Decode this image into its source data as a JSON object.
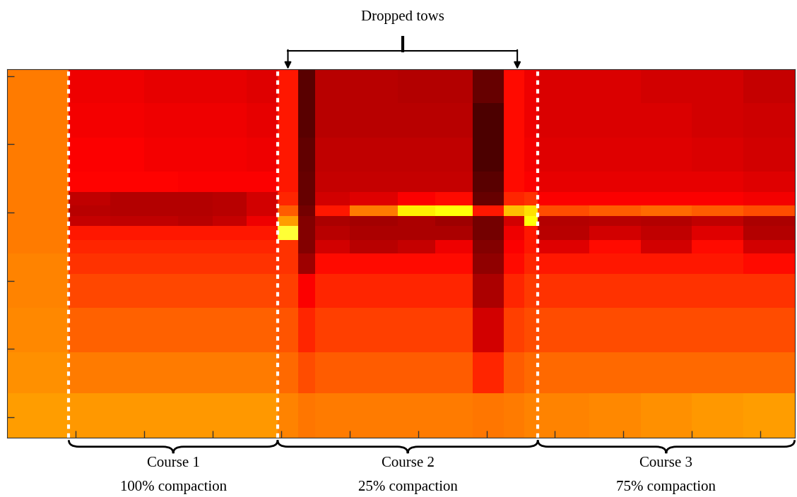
{
  "chart_data": {
    "type": "heatmap",
    "x_edges": [
      0,
      18,
      30,
      40,
      50,
      60,
      70,
      79,
      85,
      90,
      100,
      114,
      125,
      136,
      145,
      151,
      155,
      170,
      185,
      200,
      215,
      230
    ],
    "y_edges": [
      0,
      10,
      20,
      30,
      36,
      40,
      43,
      46,
      50,
      54,
      60,
      70,
      83,
      95,
      108
    ],
    "cells": [
      [
        55,
        34,
        34,
        33,
        33,
        33,
        32,
        40,
        12,
        26,
        26,
        25,
        25,
        14,
        38,
        34,
        31,
        31,
        30,
        30,
        28
      ],
      [
        55,
        35,
        35,
        34,
        34,
        34,
        33,
        40,
        12,
        26,
        26,
        26,
        26,
        10,
        38,
        34,
        31,
        31,
        31,
        30,
        29
      ],
      [
        55,
        36,
        36,
        35,
        35,
        35,
        34,
        40,
        13,
        27,
        27,
        27,
        27,
        10,
        38,
        35,
        32,
        32,
        32,
        31,
        30
      ],
      [
        55,
        37,
        37,
        37,
        36,
        36,
        36,
        40,
        14,
        28,
        28,
        28,
        28,
        12,
        38,
        36,
        33,
        33,
        33,
        33,
        32
      ],
      [
        55,
        27,
        25,
        25,
        25,
        26,
        30,
        42,
        14,
        30,
        32,
        36,
        38,
        14,
        42,
        44,
        36,
        36,
        36,
        36,
        35
      ],
      [
        55,
        26,
        25,
        25,
        25,
        26,
        30,
        50,
        16,
        40,
        55,
        72,
        75,
        40,
        65,
        70,
        48,
        50,
        52,
        50,
        48
      ],
      [
        55,
        28,
        27,
        27,
        26,
        28,
        34,
        60,
        18,
        24,
        23,
        24,
        22,
        16,
        30,
        75,
        25,
        26,
        25,
        27,
        24
      ],
      [
        55,
        40,
        40,
        40,
        40,
        40,
        40,
        80,
        18,
        26,
        24,
        24,
        24,
        16,
        34,
        40,
        26,
        30,
        27,
        32,
        25
      ],
      [
        55,
        42,
        42,
        42,
        42,
        42,
        42,
        44,
        18,
        30,
        26,
        28,
        34,
        18,
        36,
        40,
        32,
        38,
        30,
        38,
        30
      ],
      [
        56,
        44,
        44,
        44,
        44,
        44,
        44,
        44,
        22,
        38,
        38,
        38,
        38,
        20,
        38,
        42,
        40,
        40,
        40,
        40,
        38
      ],
      [
        56,
        47,
        47,
        47,
        47,
        47,
        47,
        46,
        36,
        42,
        42,
        42,
        42,
        24,
        42,
        45,
        44,
        44,
        44,
        44,
        44
      ],
      [
        57,
        51,
        51,
        51,
        51,
        51,
        51,
        49,
        42,
        46,
        46,
        46,
        46,
        30,
        46,
        48,
        48,
        48,
        48,
        48,
        48
      ],
      [
        58,
        55,
        55,
        55,
        55,
        55,
        55,
        52,
        48,
        50,
        50,
        50,
        50,
        42,
        50,
        52,
        52,
        52,
        52,
        52,
        52
      ],
      [
        60,
        59,
        59,
        59,
        59,
        59,
        59,
        56,
        54,
        55,
        55,
        55,
        55,
        54,
        55,
        56,
        56,
        57,
        58,
        59,
        60
      ]
    ],
    "color_range": [
      0,
      100
    ],
    "xlim": [
      0,
      230
    ],
    "ylim": [
      108,
      0
    ],
    "xticks": [
      20,
      40,
      60,
      80,
      100,
      120,
      140,
      160,
      180,
      200,
      220
    ],
    "yticks": [
      2,
      22,
      42,
      62,
      82,
      102
    ],
    "tick_labels": false,
    "courses": [
      {
        "label": "Course 1",
        "compaction": "100% compaction",
        "start": 18,
        "end": 79
      },
      {
        "label": "Course 2",
        "compaction": "25% compaction",
        "start": 79,
        "end": 155
      },
      {
        "label": "Course 3",
        "compaction": "75% compaction",
        "start": 155,
        "end": 230
      }
    ],
    "dropped_tows": {
      "label": "Dropped tows",
      "x": [
        82,
        149
      ]
    }
  }
}
